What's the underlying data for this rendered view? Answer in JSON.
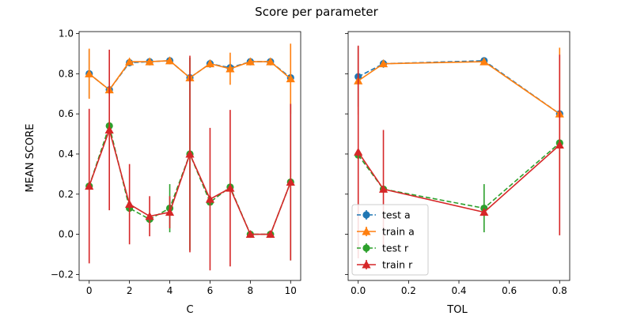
{
  "figure_title": "Score per parameter",
  "colors": {
    "test_a": "#1f77b4",
    "train_a": "#ff7f0e",
    "test_r": "#2ca02c",
    "train_r": "#d62728"
  },
  "chart_data": [
    {
      "type": "line",
      "xlabel": "C",
      "ylabel": "MEAN SCORE",
      "xlim": [
        -0.5,
        10.5
      ],
      "ylim": [
        -0.23,
        1.01
      ],
      "x_ticks": [
        "0",
        "2",
        "4",
        "6",
        "8",
        "10"
      ],
      "y_ticks": [
        "−0.2",
        "0.0",
        "0.2",
        "0.4",
        "0.6",
        "0.8",
        "1.0"
      ],
      "x": [
        0,
        1,
        2,
        3,
        4,
        5,
        6,
        7,
        8,
        9,
        10
      ],
      "series": [
        {
          "name": "test a",
          "marker": "circle",
          "dashed": true,
          "values": [
            0.8,
            0.72,
            0.855,
            0.86,
            0.865,
            0.78,
            0.85,
            0.83,
            0.86,
            0.86,
            0.78
          ],
          "errors": [
            0.12,
            0.02,
            0.01,
            0.01,
            0.01,
            0.01,
            0.02,
            0.02,
            0.01,
            0.01,
            0.02
          ]
        },
        {
          "name": "train a",
          "marker": "triangle",
          "dashed": false,
          "values": [
            0.8,
            0.72,
            0.86,
            0.86,
            0.865,
            0.78,
            0.85,
            0.825,
            0.86,
            0.86,
            0.775
          ],
          "errors": [
            0.125,
            0.02,
            0.01,
            0.01,
            0.01,
            0.01,
            0.01,
            0.08,
            0.01,
            0.01,
            0.175
          ]
        },
        {
          "name": "test r",
          "marker": "circle",
          "dashed": true,
          "values": [
            0.24,
            0.54,
            0.13,
            0.075,
            0.13,
            0.4,
            0.16,
            0.235,
            0.0,
            0.0,
            0.26
          ],
          "errors": [
            0.01,
            0.02,
            0.01,
            0.01,
            0.12,
            0.48,
            0.01,
            0.01,
            0.0,
            0.0,
            0.39
          ]
        },
        {
          "name": "train r",
          "marker": "triangle",
          "dashed": false,
          "values": [
            0.24,
            0.52,
            0.15,
            0.09,
            0.11,
            0.4,
            0.175,
            0.23,
            0.0,
            0.0,
            0.26
          ],
          "errors": [
            0.385,
            0.4,
            0.2,
            0.1,
            0.08,
            0.49,
            0.355,
            0.39,
            0.0,
            0.0,
            0.39
          ]
        }
      ]
    },
    {
      "type": "line",
      "xlabel": "TOL",
      "ylabel": "",
      "xlim": [
        -0.04,
        0.84
      ],
      "ylim": [
        -0.23,
        1.01
      ],
      "x_ticks": [
        "0.0",
        "0.2",
        "0.4",
        "0.6",
        "0.8"
      ],
      "y_ticks": [],
      "x": [
        0.0,
        0.1,
        0.5,
        0.8
      ],
      "series": [
        {
          "name": "test a",
          "marker": "circle",
          "dashed": true,
          "values": [
            0.785,
            0.85,
            0.865,
            0.6
          ],
          "errors": [
            0.15,
            0.02,
            0.01,
            0.01
          ]
        },
        {
          "name": "train a",
          "marker": "triangle",
          "dashed": false,
          "values": [
            0.765,
            0.85,
            0.86,
            0.6
          ],
          "errors": [
            0.17,
            0.01,
            0.01,
            0.33
          ]
        },
        {
          "name": "test r",
          "marker": "circle",
          "dashed": true,
          "values": [
            0.395,
            0.225,
            0.13,
            0.455
          ],
          "errors": [
            0.01,
            0.01,
            0.12,
            0.01
          ]
        },
        {
          "name": "train r",
          "marker": "triangle",
          "dashed": false,
          "values": [
            0.41,
            0.225,
            0.11,
            0.445
          ],
          "errors": [
            0.53,
            0.295,
            0.01,
            0.45
          ]
        }
      ],
      "legend": {
        "placement": "lower-left",
        "entries": [
          "test a",
          "train a",
          "test r",
          "train r"
        ]
      }
    }
  ]
}
